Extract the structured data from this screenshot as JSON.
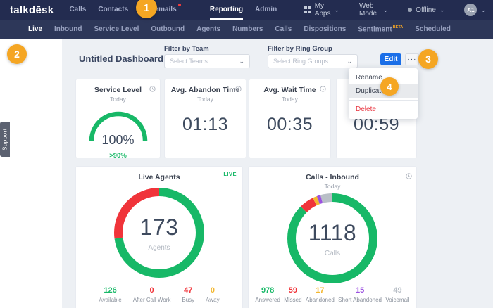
{
  "topnav": {
    "logo": "talkdēsk",
    "items": [
      {
        "label": "Calls"
      },
      {
        "label": "Contacts"
      },
      {
        "label": "Voicemails",
        "badge": true
      },
      {
        "label": "Reporting",
        "active": true
      },
      {
        "label": "Admin"
      }
    ],
    "right": {
      "my_apps": "My Apps",
      "web_mode": "Web Mode",
      "status": "Offline",
      "avatar": "A1"
    }
  },
  "subnav": {
    "items": [
      "Live",
      "Inbound",
      "Service Level",
      "Outbound",
      "Agents",
      "Numbers",
      "Calls",
      "Dispositions",
      "Sentiment",
      "Scheduled"
    ],
    "active": "Live",
    "beta_label": "BETA"
  },
  "support_tab": "Support",
  "header": {
    "title": "Untitled Dashboard Co...",
    "filter_team_label": "Filter by Team",
    "filter_team_placeholder": "Select Teams",
    "filter_ring_label": "Filter by Ring Group",
    "filter_ring_placeholder": "Select Ring Groups",
    "edit_label": "Edit",
    "more_label": "···"
  },
  "menu": {
    "items": [
      {
        "label": "Rename"
      },
      {
        "label": "Duplicate",
        "highlighted": true
      },
      {
        "label": "Delete",
        "danger": true
      }
    ]
  },
  "annotations": [
    "1",
    "2",
    "3",
    "4"
  ],
  "cards": {
    "abandon": {
      "title": "Avg. Abandon Time",
      "subtitle": "Today",
      "value": "01:13"
    },
    "wait": {
      "title": "Avg. Wait Time",
      "subtitle": "Today",
      "value": "00:35"
    },
    "partial": {
      "value": "00:59"
    }
  },
  "chart_data": [
    {
      "type": "gauge",
      "title": "Service Level",
      "subtitle": "Today",
      "value": 100,
      "display": "100%",
      "threshold": ">90%",
      "color": "#17b867"
    },
    {
      "type": "pie",
      "title": "Live Agents",
      "live_badge": "LIVE",
      "center_value": "173",
      "center_label": "Agents",
      "total": 173,
      "series": [
        {
          "name": "Available",
          "value": 126,
          "color": "#17b867"
        },
        {
          "name": "After Call Work",
          "value": 0,
          "color": "#f0343a"
        },
        {
          "name": "Busy",
          "value": 47,
          "color": "#f0343a"
        },
        {
          "name": "Away",
          "value": 0,
          "color": "#f3b72f"
        }
      ]
    },
    {
      "type": "pie",
      "title": "Calls - Inbound",
      "subtitle": "Today",
      "center_value": "1118",
      "center_label": "Calls",
      "total": 1118,
      "series": [
        {
          "name": "Answered",
          "value": 978,
          "color": "#17b867"
        },
        {
          "name": "Missed",
          "value": 59,
          "color": "#f0343a"
        },
        {
          "name": "Abandoned",
          "value": 17,
          "color": "#f3b72f"
        },
        {
          "name": "Short Abandoned",
          "value": 15,
          "color": "#9b51e0"
        },
        {
          "name": "Voicemail",
          "value": 49,
          "color": "#b9bfc7"
        }
      ]
    }
  ],
  "colors": {
    "orange": "#f5a623",
    "blue": "#1b6fe8",
    "green": "#17b867",
    "red": "#f0343a",
    "yellow": "#f3b72f",
    "purple": "#9b51e0",
    "gray": "#b9bfc7",
    "danger": "#e8343f",
    "nav_dark": "#232c50",
    "nav_sub": "#2d3759"
  }
}
